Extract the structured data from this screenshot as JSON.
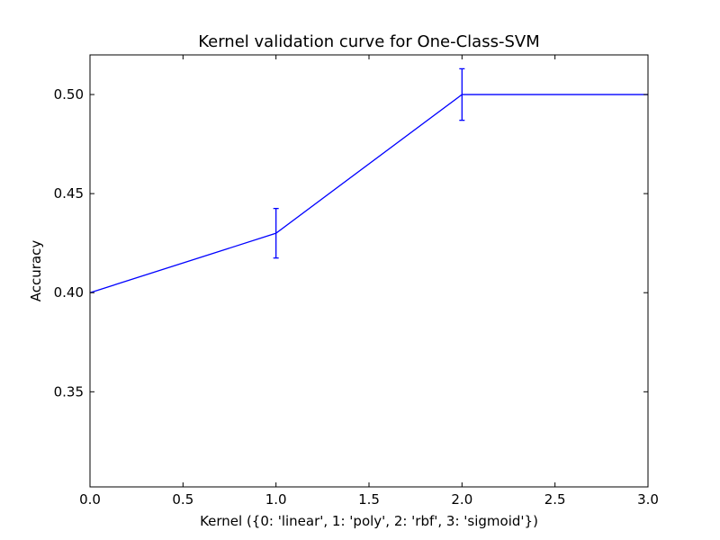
{
  "chart_data": {
    "type": "line",
    "title": "Kernel validation curve for One-Class-SVM",
    "xlabel": "Kernel ({0: 'linear', 1: 'poly', 2: 'rbf', 3: 'sigmoid'})",
    "ylabel": "Accuracy",
    "xlim": [
      0.0,
      3.0
    ],
    "ylim": [
      0.302,
      0.52
    ],
    "xticks": [
      "0.0",
      "0.5",
      "1.0",
      "1.5",
      "2.0",
      "2.5",
      "3.0"
    ],
    "yticks": [
      "0.35",
      "0.40",
      "0.45",
      "0.50"
    ],
    "grid": false,
    "series": [
      {
        "x": [
          0,
          1,
          2,
          3
        ],
        "y": [
          0.4,
          0.43,
          0.5,
          0.5
        ],
        "yerr": [
          0.0,
          0.0125,
          0.013,
          0.0
        ],
        "color": "#0000ff"
      }
    ]
  }
}
